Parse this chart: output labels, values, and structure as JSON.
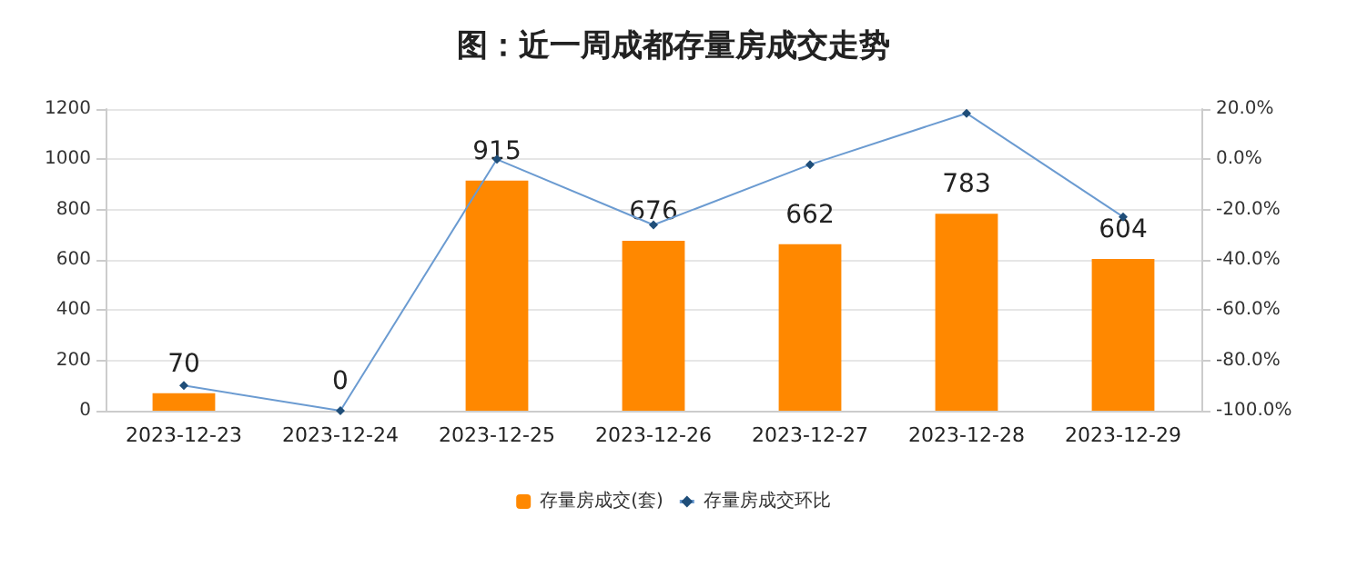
{
  "chart_data": {
    "type": "bar",
    "title": "图：近一周成都存量房成交走势",
    "categories": [
      "2023-12-23",
      "2023-12-24",
      "2023-12-25",
      "2023-12-26",
      "2023-12-27",
      "2023-12-28",
      "2023-12-29"
    ],
    "series": [
      {
        "name": "存量房成交(套)",
        "color": "#ff8800",
        "data_labels": true,
        "values": [
          70,
          0,
          915,
          676,
          662,
          783,
          604
        ]
      },
      {
        "name": "存量房成交环比",
        "type": "line",
        "axis": "y2",
        "color": "#6b9bd1",
        "marker": "diamond",
        "values": [
          -90,
          -100,
          0,
          -26.1,
          -2.1,
          18.3,
          -22.9
        ]
      }
    ],
    "ylim": [
      0,
      1200
    ],
    "yticks": [
      0,
      200,
      400,
      600,
      800,
      1000,
      1200
    ],
    "y2lim": [
      -100,
      20
    ],
    "y2ticks": [
      {
        "value": -100,
        "label": "-100.0%"
      },
      {
        "value": -80,
        "label": "-80.0%"
      },
      {
        "value": -60,
        "label": "-60.0%"
      },
      {
        "value": -40,
        "label": "-40.0%"
      },
      {
        "value": -20,
        "label": "-20.0%"
      },
      {
        "value": 0,
        "label": "0.0%"
      },
      {
        "value": 20,
        "label": "20.0%"
      }
    ],
    "grid": "y",
    "legend": "bottom"
  }
}
